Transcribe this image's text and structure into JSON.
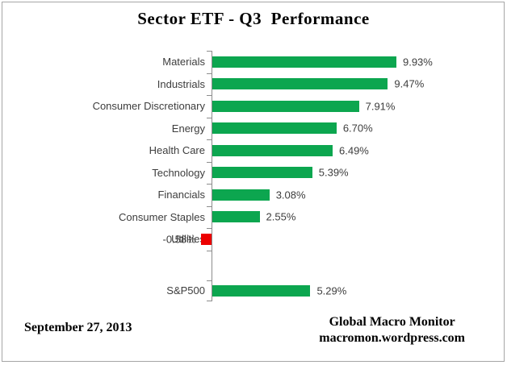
{
  "chart_data": {
    "type": "bar",
    "orientation": "horizontal",
    "title": "Sector ETF - Q3  Performance",
    "categories": [
      "Materials",
      "Industrials",
      "Consumer Discretionary",
      "Energy",
      "Health Care",
      "Technology",
      "Financials",
      "Consumer Staples",
      "Utilities",
      "S&P500"
    ],
    "values": [
      9.93,
      9.47,
      7.91,
      6.7,
      6.49,
      5.39,
      3.08,
      2.55,
      -0.58,
      5.29
    ],
    "value_labels": [
      "9.93%",
      "9.47%",
      "7.91%",
      "6.70%",
      "6.49%",
      "5.39%",
      "3.08%",
      "2.55%",
      "-0.58%",
      "5.29%"
    ],
    "separator_before_index": 9,
    "xlabel": "",
    "ylabel": "",
    "grid": false,
    "legend": false,
    "colors": {
      "positive_bar": "#0CA64F",
      "negative_bar": "#EC0000",
      "axis": "#8c8c8c",
      "label_text": "#3d3d3d"
    }
  },
  "footer": {
    "date": "September 27, 2013",
    "credit_line1": "Global Macro Monitor",
    "credit_line2": "macromon.wordpress.com"
  }
}
